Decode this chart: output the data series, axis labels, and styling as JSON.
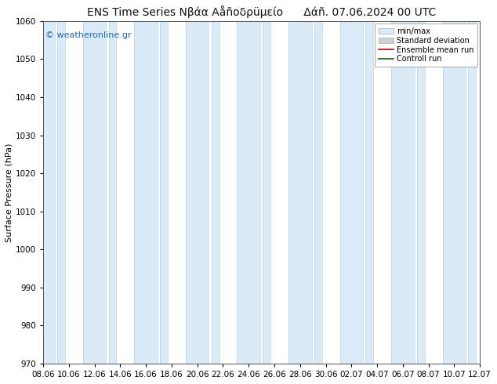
{
  "title": "ENS Time Series Νβάα Αåñοδρüμείο      Δάñ. 07.06.2024 00 UTC",
  "ylabel": "Surface Pressure (hPa)",
  "watermark": "© weatheronline.gr",
  "ylim": [
    970,
    1060
  ],
  "yticks": [
    970,
    980,
    990,
    1000,
    1010,
    1020,
    1030,
    1040,
    1050,
    1060
  ],
  "xtick_labels": [
    "08.06",
    "10.06",
    "12.06",
    "14.06",
    "16.06",
    "18.06",
    "20.06",
    "22.06",
    "24.06",
    "26.06",
    "28.06",
    "30.06",
    "02.07",
    "04.07",
    "06.07",
    "08.07",
    "10.07",
    "12.07"
  ],
  "xtick_positions": [
    0,
    2,
    4,
    6,
    8,
    10,
    12,
    14,
    16,
    18,
    20,
    22,
    24,
    26,
    28,
    30,
    32,
    34
  ],
  "xlim": [
    0,
    34
  ],
  "band_color": "#daeaf7",
  "band_edge_color": "#b8d4ea",
  "background_color": "#ffffff",
  "plot_bg_color": "#ffffff",
  "title_fontsize": 10,
  "ylabel_fontsize": 8,
  "tick_fontsize": 7.5,
  "legend_labels": [
    "min/max",
    "Standard deviation",
    "Ensemble mean run",
    "Controll run"
  ],
  "legend_fill_colors": [
    "#daeaf7",
    "#d0d0d0"
  ],
  "legend_line_colors": [
    "#cc0000",
    "#006600"
  ],
  "title_color": "#111111",
  "watermark_color": "#1a6bb5",
  "watermark_fontsize": 8
}
